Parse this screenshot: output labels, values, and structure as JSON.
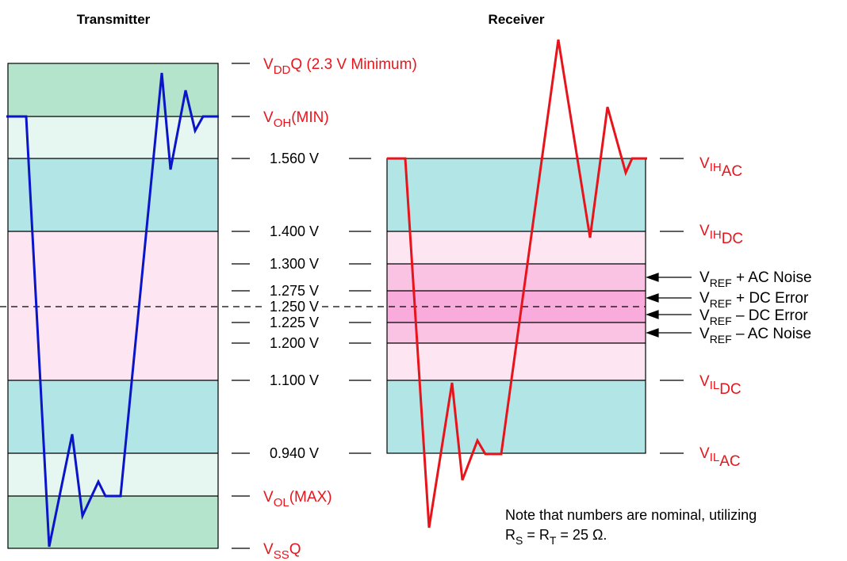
{
  "headers": {
    "transmitter": "Transmitter",
    "receiver": "Receiver"
  },
  "levels": {
    "v1560": "1.560 V",
    "v1400": "1.400 V",
    "v1300": "1.300 V",
    "v1275": "1.275 V",
    "v1250": "1.250 V",
    "v1225": "1.225 V",
    "v1200": "1.200 V",
    "v1100": "1.100 V",
    "v0940": "0.940 V"
  },
  "tx_labels": {
    "vddq": {
      "main": "V",
      "sub": "DD",
      "tail": "Q (2.3 V Minimum)"
    },
    "voh": {
      "main": "V",
      "sub": "OH",
      "tail": "(MIN)"
    },
    "vol": {
      "main": "V",
      "sub": "OL",
      "tail": "(MAX)"
    },
    "vssq": {
      "main": "V",
      "sub": "SS",
      "tail": "Q"
    }
  },
  "rx_labels": {
    "vihac": {
      "main": "V",
      "sub": "IH",
      "subsub": "AC"
    },
    "vihdc": {
      "main": "V",
      "sub": "IH",
      "subsub": "DC"
    },
    "vildc": {
      "main": "V",
      "sub": "IL",
      "subsub": "DC"
    },
    "vilac": {
      "main": "V",
      "sub": "IL",
      "subsub": "AC"
    }
  },
  "vref_labels": {
    "ac_noise_plus": {
      "main": "V",
      "sub": "REF",
      "tail": " + AC Noise"
    },
    "dc_error_plus": {
      "main": "V",
      "sub": "REF",
      "tail": " + DC Error"
    },
    "dc_error_minus": {
      "main": "V",
      "sub": "REF",
      "tail": " – DC Error"
    },
    "ac_noise_minus": {
      "main": "V",
      "sub": "REF",
      "tail": " – AC Noise"
    }
  },
  "note": {
    "line1": "Note that numbers are nominal, utilizing",
    "r1": "R",
    "r1sub": "S",
    "eq1": " = R",
    "r2sub": "T",
    "eq2": " = 25 Ω."
  },
  "colors": {
    "outer_green": "#b5e4cc",
    "light_green": "#e6f7f2",
    "teal": "#b2e6e6",
    "pale_pink": "#fde5f2",
    "mid_pink": "#fbc3e3",
    "hot_pink": "#f9abdc",
    "tx_trace": "#0a14c8",
    "rx_trace": "#e8141c"
  }
}
